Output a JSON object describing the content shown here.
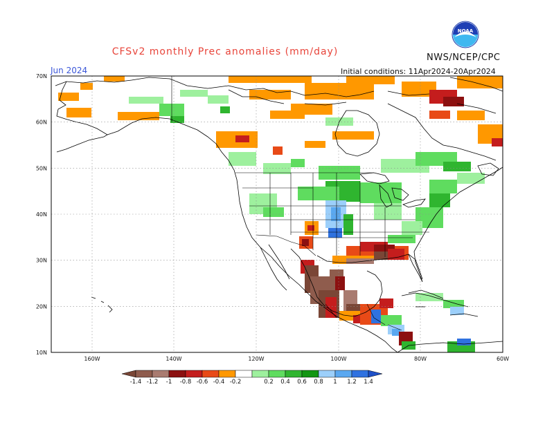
{
  "title": "CFSv2 monthly Prec anomalies (mm/day)",
  "org": "NWS/NCEP/CPC",
  "logo": {
    "icon": "noaa-logo",
    "text": "NOAA"
  },
  "valid_month": "Jun 2024",
  "initial_conditions": "Initial conditions: 11Apr2024-20Apr2024",
  "axes": {
    "lat_labels": [
      "70N",
      "60N",
      "50N",
      "40N",
      "30N",
      "20N",
      "10N"
    ],
    "lon_labels": [
      "160W",
      "140W",
      "120W",
      "100W",
      "80W",
      "60W"
    ]
  },
  "colorbar": {
    "labels": [
      "-1.4",
      "-1.2",
      "-1",
      "-0.8",
      "-0.6",
      "-0.4",
      "-0.2",
      "0.2",
      "0.4",
      "0.6",
      "0.8",
      "1",
      "1.2",
      "1.4"
    ],
    "colors": [
      "#7a4636",
      "#8f5c4d",
      "#a97b70",
      "#8c1010",
      "#c41d1d",
      "#e84a17",
      "#ff9800",
      "#ffffff",
      "#9ef09e",
      "#5fdc5f",
      "#2fb52f",
      "#129612",
      "#9ccffa",
      "#5aa8f0",
      "#2f72e0",
      "#1e50c8"
    ]
  }
}
